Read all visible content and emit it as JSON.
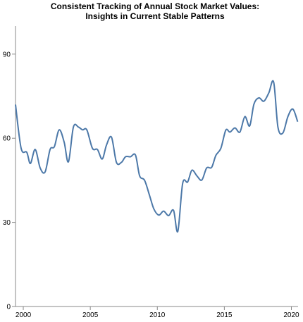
{
  "chart_data": {
    "type": "line",
    "title": [
      "Consistent Tracking of Annual Stock Market Values:",
      "Insights in Current Stable Patterns"
    ],
    "x": [
      1999.42,
      1999.84,
      2000.26,
      2000.53,
      2000.89,
      2001.26,
      2001.63,
      2002.0,
      2002.32,
      2002.68,
      2003.05,
      2003.37,
      2003.74,
      2004.11,
      2004.42,
      2004.74,
      2005.16,
      2005.53,
      2005.89,
      2006.21,
      2006.58,
      2006.95,
      2007.32,
      2007.63,
      2008.0,
      2008.37,
      2008.68,
      2009.05,
      2009.42,
      2009.74,
      2010.11,
      2010.47,
      2010.84,
      2011.21,
      2011.53,
      2011.89,
      2012.26,
      2012.58,
      2012.95,
      2013.32,
      2013.68,
      2014.05,
      2014.37,
      2014.74,
      2015.11,
      2015.42,
      2015.79,
      2016.16,
      2016.53,
      2016.89,
      2017.21,
      2017.58,
      2017.95,
      2018.32,
      2018.68,
      2019.0,
      2019.37,
      2019.74,
      2020.11,
      2020.47
    ],
    "series": [
      {
        "color": "#4c78a8",
        "values": [
          72,
          56.4,
          55,
          51,
          56,
          49.4,
          48,
          56,
          57,
          63,
          58.6,
          51.6,
          64,
          64,
          63,
          63,
          56.4,
          56,
          52.6,
          57.6,
          60.4,
          51.4,
          51.4,
          53.4,
          53.4,
          54,
          46.6,
          45,
          39.6,
          34.8,
          32.6,
          34,
          32.4,
          34.3,
          26.8,
          43.9,
          44.4,
          48.6,
          46.6,
          45.1,
          49.4,
          49.6,
          53.9,
          56.4,
          62.9,
          62.2,
          63.7,
          62.2,
          67.7,
          64.4,
          72.2,
          74.4,
          73.2,
          76.2,
          80,
          63.9,
          61.9,
          67.7,
          70.4,
          65.9
        ]
      }
    ],
    "xlim": [
      1999.42,
      2020.5
    ],
    "xticks": [
      2000,
      2005,
      2010,
      2015,
      2020
    ],
    "ylim": [
      0,
      100
    ],
    "yticks": [
      0,
      30,
      60,
      90
    ],
    "grid": false
  }
}
